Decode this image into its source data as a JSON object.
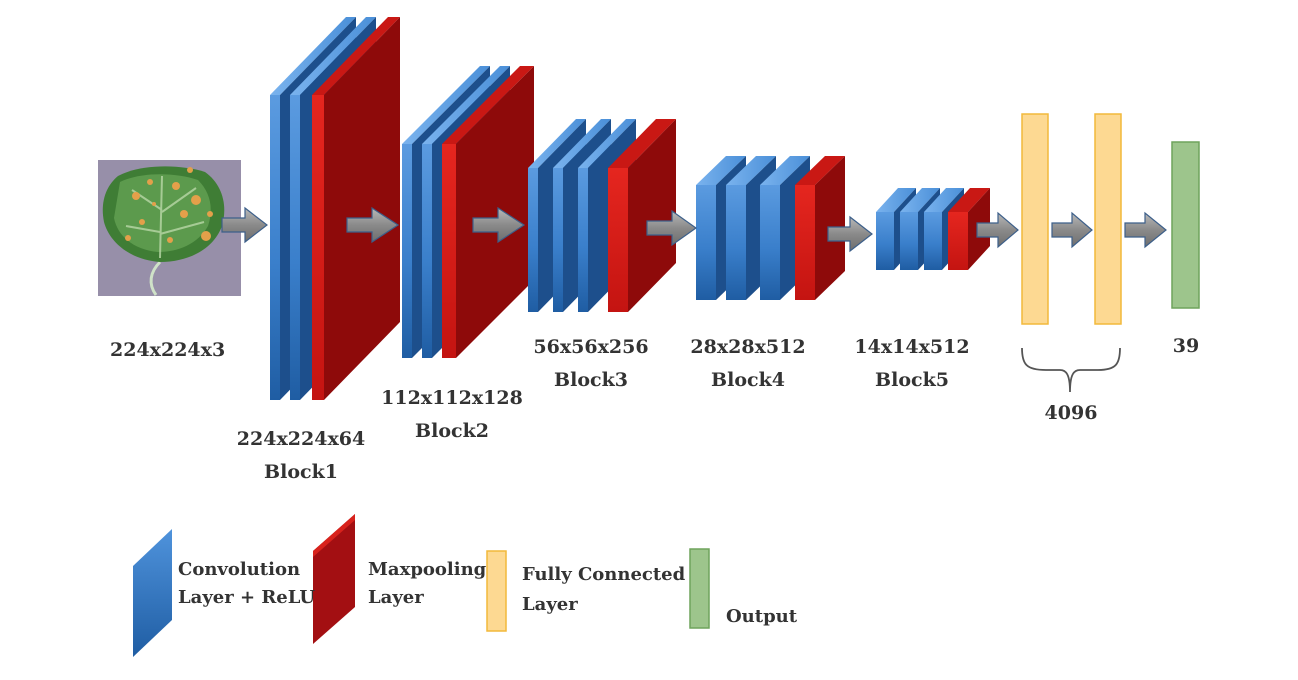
{
  "diagram": {
    "input": {
      "dims": "224x224x3"
    },
    "blocks": [
      {
        "dims": "224x224x64",
        "name": "Block1"
      },
      {
        "dims": "112x112x128",
        "name": "Block2"
      },
      {
        "dims": "56x56x256",
        "name": "Block3"
      },
      {
        "dims": "28x28x512",
        "name": "Block4"
      },
      {
        "dims": "14x14x512",
        "name": "Block5"
      }
    ],
    "fully_connected": {
      "units": "4096"
    },
    "output": {
      "units": "39"
    }
  },
  "legend": {
    "convolution": {
      "line1": "Convolution",
      "line2": "Layer + ReLU",
      "color": "#2f6fb5"
    },
    "maxpooling": {
      "line1": "Maxpooling",
      "line2": "Layer",
      "color": "#b0161a"
    },
    "fully_connected": {
      "line1": "Fully Connected",
      "line2": "Layer",
      "color": "#fcd88b"
    },
    "output": {
      "line1": "Output",
      "color": "#9dc58c"
    }
  }
}
